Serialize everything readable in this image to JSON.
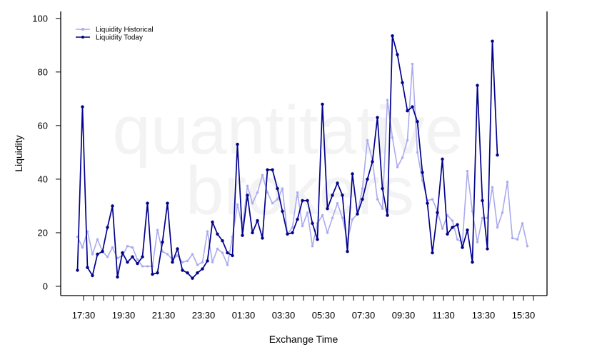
{
  "watermark": {
    "line1": "quantitative",
    "line2": "brokers"
  },
  "chart_data": {
    "type": "line",
    "xlabel": "Exchange Time",
    "ylabel": "Liquidity",
    "ylim": [
      0,
      100
    ],
    "y_ticks": [
      0,
      20,
      40,
      60,
      80,
      100
    ],
    "x_ticks": [
      "17:30",
      "19:30",
      "21:30",
      "23:30",
      "01:30",
      "03:30",
      "05:30",
      "07:30",
      "09:30",
      "11:30",
      "13:30",
      "15:30"
    ],
    "legend_position": "top-left",
    "grid": false,
    "series": [
      {
        "name": "Liquidity Historical",
        "color": "#aaaaee",
        "values": [
          18.5,
          14.5,
          20.5,
          12,
          17.5,
          13,
          11,
          14.5,
          10.5,
          11.5,
          15,
          14.5,
          10,
          7.5,
          7.5,
          7.5,
          21,
          13,
          12,
          10,
          11.5,
          9,
          9.5,
          12,
          8,
          9,
          20.5,
          9,
          14,
          12.5,
          8,
          18.5,
          30.5,
          22,
          37.5,
          31,
          35,
          41.5,
          35,
          31,
          32.5,
          36.5,
          19.5,
          22,
          35,
          22.5,
          27.5,
          15,
          23.5,
          26.5,
          20,
          25.5,
          31,
          25.5,
          17,
          25,
          27,
          36.5,
          54.5,
          47,
          32.5,
          29,
          69.5,
          55.5,
          44.5,
          48,
          54.5,
          83,
          50,
          39.5,
          32,
          32.5,
          28,
          21.5,
          26.5,
          24.5,
          17.5,
          16.5,
          43,
          28,
          16.5,
          25.5,
          25.5,
          37,
          22,
          27.5,
          39,
          18,
          17.5,
          23.5,
          15
        ]
      },
      {
        "name": "Liquidity Today",
        "color": "#00008b",
        "values": [
          6,
          67,
          7,
          4,
          12,
          13,
          22,
          30,
          3.5,
          12.5,
          9,
          11,
          8.5,
          11,
          31,
          4.5,
          5,
          16.5,
          31,
          9,
          14,
          6,
          5,
          3,
          5,
          6.5,
          9.5,
          24,
          19.5,
          17,
          12.5,
          11.5,
          53,
          19,
          34,
          20,
          24.5,
          18,
          43.5,
          43.5,
          36.5,
          28,
          19.5,
          20,
          25,
          32,
          32,
          23.5,
          17.5,
          68,
          29,
          34,
          38.5,
          34,
          13,
          42,
          27,
          32.5,
          40,
          46.5,
          63,
          36.5,
          26.5,
          93.5,
          86.5,
          76,
          65.5,
          67,
          61.5,
          42.5,
          31,
          12.5,
          27.5,
          47.5,
          19.5,
          22,
          23,
          14.5,
          21,
          9,
          75,
          32,
          14,
          91.5,
          49
        ]
      }
    ]
  }
}
